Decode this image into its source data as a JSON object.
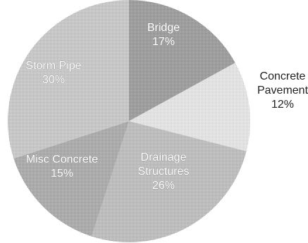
{
  "chart_data": {
    "type": "pie",
    "title": "",
    "slices": [
      {
        "label_lines": [
          "Bridge",
          "17%"
        ],
        "label": "Bridge",
        "value": 17,
        "color": "#9a9a9a",
        "label_outside": false
      },
      {
        "label_lines": [
          "Concrete",
          "Pavement",
          "12%"
        ],
        "label": "Concrete Pavement",
        "value": 12,
        "color": "#e6e6e6",
        "label_outside": true
      },
      {
        "label_lines": [
          "Drainage",
          "Structures",
          "26%"
        ],
        "label": "Drainage Structures",
        "value": 26,
        "color": "#bdbdbd",
        "label_outside": false
      },
      {
        "label_lines": [
          "Misc Concrete",
          "15%"
        ],
        "label": "Misc Concrete",
        "value": 15,
        "color": "#a9a9a9",
        "label_outside": false
      },
      {
        "label_lines": [
          "Storm Pipe",
          "30%"
        ],
        "label": "Storm Pipe",
        "value": 30,
        "color": "#c8c8c8",
        "label_outside": false
      }
    ]
  }
}
